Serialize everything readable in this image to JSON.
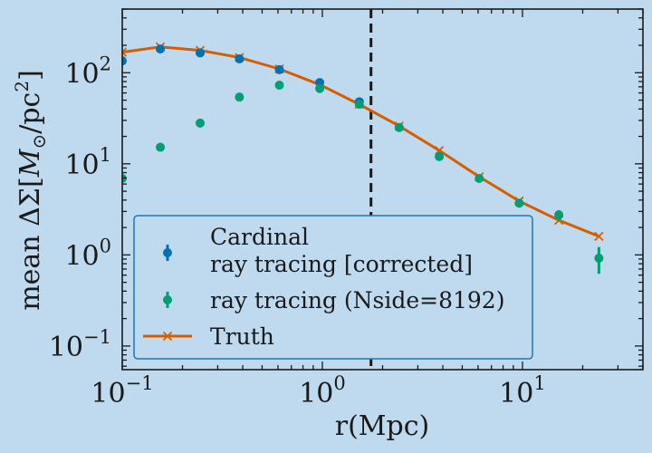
{
  "chart_data": {
    "type": "scatter",
    "xlabel": "r(Mpc)",
    "ylabel_prefix": "mean ΔΣ[",
    "ylabel_unit_symbol": "M",
    "ylabel_unit_sub": "⊙",
    "ylabel_unit_rest": "/pc",
    "ylabel_unit_sup": "2",
    "ylabel_suffix": "]",
    "x_scale": "log",
    "y_scale": "log",
    "xlim": [
      0.1,
      40
    ],
    "ylim": [
      0.055,
      500
    ],
    "grid": false,
    "legend_placement": "lower-left",
    "x_ticks": [
      {
        "value": 0.1,
        "base": "10",
        "exp": "−1"
      },
      {
        "value": 1,
        "base": "10",
        "exp": "0"
      },
      {
        "value": 10,
        "base": "10",
        "exp": "1"
      }
    ],
    "y_ticks": [
      {
        "value": 0.1,
        "base": "10",
        "exp": "−1"
      },
      {
        "value": 1,
        "base": "10",
        "exp": "0"
      },
      {
        "value": 10,
        "base": "10",
        "exp": "1"
      },
      {
        "value": 100,
        "base": "10",
        "exp": "2"
      }
    ],
    "vline": {
      "x": 1.75,
      "color": "#1a1a1a",
      "style": "dashed"
    },
    "series": [
      {
        "name": "Truth",
        "kind": "line",
        "marker": "x",
        "color": "#d55e00",
        "x": [
          0.1,
          0.155,
          0.245,
          0.385,
          0.61,
          0.97,
          1.53,
          2.42,
          3.84,
          6.08,
          9.63,
          15.2,
          24.1
        ],
        "y": [
          168,
          192,
          176,
          147,
          110,
          74,
          45,
          26,
          14,
          7.2,
          3.9,
          2.4,
          1.6
        ]
      },
      {
        "name": "Cardinal\nray tracing [corrected]",
        "kind": "errorbar",
        "color": "#0072b2",
        "x": [
          0.1,
          0.155,
          0.245,
          0.385,
          0.61,
          0.97,
          1.53
        ],
        "y": [
          135,
          182,
          165,
          142,
          108,
          78,
          48
        ],
        "yerr": [
          8,
          10,
          9,
          7,
          5,
          4,
          3
        ]
      },
      {
        "name": "ray tracing (Nside=8192)",
        "kind": "errorbar",
        "color": "#009e73",
        "x": [
          0.1,
          0.155,
          0.245,
          0.385,
          0.61,
          0.97,
          1.53,
          2.42,
          3.84,
          6.08,
          9.63,
          15.2,
          24.1
        ],
        "y": [
          6.9,
          15.2,
          28,
          54,
          73,
          67,
          45,
          25,
          12,
          6.9,
          3.7,
          2.75,
          0.92
        ],
        "yerr": [
          0.6,
          1.2,
          2,
          3,
          3.5,
          3,
          2,
          1.2,
          0.6,
          0.4,
          0.3,
          0.35,
          0.3
        ]
      }
    ]
  },
  "colors": {
    "background": "#bfd9ef",
    "axes": "#1a1a1a",
    "legend_border": "#1f77b4",
    "legend_fill": "#bfd9ef"
  }
}
